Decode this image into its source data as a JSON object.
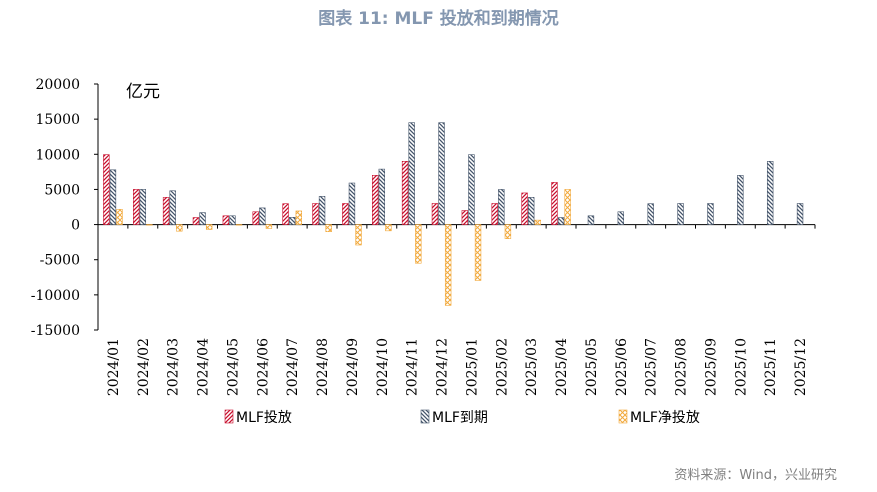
{
  "header": {
    "title": "图表 11: MLF 投放和到期情况"
  },
  "footer": {
    "source": "资料来源：Wind，兴业研究"
  },
  "chart_data": {
    "type": "bar",
    "unit_label": "亿元",
    "ylim": [
      -15000,
      20000
    ],
    "yticks": [
      20000,
      15000,
      10000,
      5000,
      0,
      -5000,
      -10000,
      -15000
    ],
    "categories": [
      "2024/01",
      "2024/02",
      "2024/03",
      "2024/04",
      "2024/05",
      "2024/06",
      "2024/07",
      "2024/08",
      "2024/09",
      "2024/10",
      "2024/11",
      "2024/12",
      "2025/01",
      "2025/02",
      "2025/03",
      "2025/04",
      "2025/05",
      "2025/06",
      "2025/07",
      "2025/08",
      "2025/09",
      "2025/10",
      "2025/11",
      "2025/12"
    ],
    "legend_position": "bottom",
    "series": [
      {
        "name": "MLF投放",
        "color": "#c8102e",
        "pattern": "diag-right",
        "values": [
          9950,
          5000,
          3870,
          1000,
          1250,
          1820,
          2970,
          3000,
          3000,
          7000,
          9000,
          3000,
          2000,
          3000,
          4500,
          6000,
          null,
          null,
          null,
          null,
          null,
          null,
          null,
          null
        ]
      },
      {
        "name": "MLF到期",
        "color": "#44546a",
        "pattern": "diag-left",
        "values": [
          7790,
          5000,
          4810,
          1700,
          1250,
          2370,
          1030,
          4010,
          5910,
          7890,
          14500,
          14500,
          9950,
          5000,
          3870,
          1000,
          1250,
          1820,
          2970,
          3000,
          3000,
          7000,
          9000,
          3000
        ]
      },
      {
        "name": "MLF净投放",
        "color": "#f2a93b",
        "pattern": "cross",
        "values": [
          2160,
          0,
          -940,
          -700,
          0,
          -550,
          1940,
          -1010,
          -2910,
          -890,
          -5500,
          -11500,
          -7950,
          -2000,
          630,
          5000,
          null,
          null,
          null,
          null,
          null,
          null,
          null,
          null
        ]
      }
    ]
  }
}
